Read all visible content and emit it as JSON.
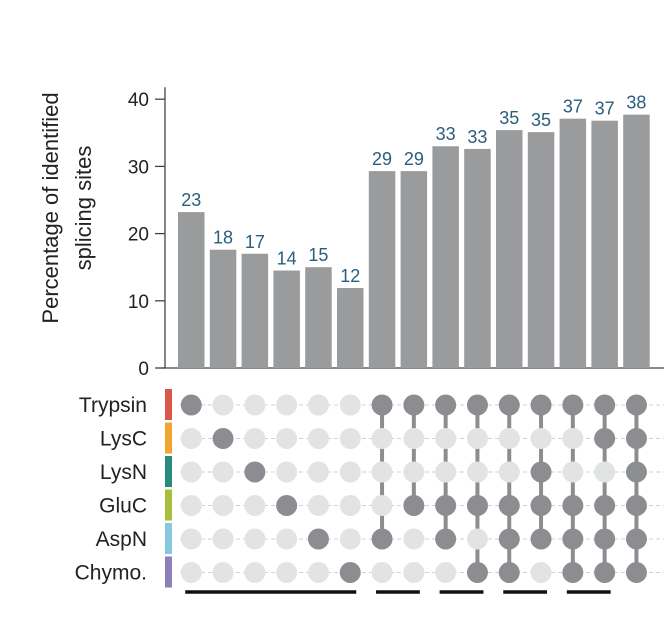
{
  "chart_data": {
    "type": "bar",
    "ylabel_lines": [
      "Percentage of identified",
      "splicing sites"
    ],
    "ylim": [
      0,
      40
    ],
    "yticks": [
      0,
      10,
      20,
      30,
      40
    ],
    "values": [
      23,
      18,
      17,
      14,
      15,
      12,
      29,
      29,
      33,
      33,
      35,
      35,
      37,
      37,
      38
    ],
    "plotted_values": [
      23.2,
      17.6,
      17.0,
      14.5,
      15.0,
      11.9,
      29.3,
      29.3,
      33.0,
      32.6,
      35.4,
      35.1,
      37.1,
      36.8,
      37.7
    ],
    "sets": [
      "Trypsin",
      "LysC",
      "LysN",
      "GluC",
      "AspN",
      "Chymo."
    ],
    "set_colors": [
      "#d9584a",
      "#f0a530",
      "#2a8a7e",
      "#a9bd3c",
      "#86c8e0",
      "#8d7fba"
    ],
    "membership": [
      [
        0
      ],
      [
        1
      ],
      [
        2
      ],
      [
        3
      ],
      [
        4
      ],
      [
        5
      ],
      [
        0,
        4
      ],
      [
        0,
        3
      ],
      [
        0,
        3,
        4
      ],
      [
        0,
        3,
        5
      ],
      [
        0,
        3,
        4,
        5
      ],
      [
        0,
        2,
        3,
        4
      ],
      [
        0,
        3,
        4,
        5
      ],
      [
        0,
        1,
        3,
        4,
        5
      ],
      [
        0,
        1,
        2,
        3,
        4,
        5
      ]
    ],
    "bar_color": "#9a9b9d",
    "label_color": "#2b5d7c",
    "dot_active_color": "#8c8d90",
    "dot_inactive_color": "#e2e3e4"
  }
}
